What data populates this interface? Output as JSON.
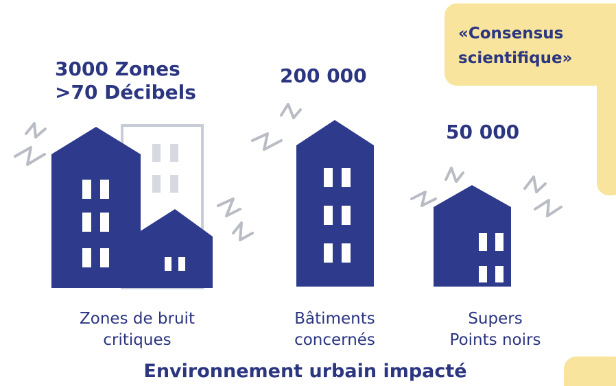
{
  "quote": [
    "«Consensus",
    "scientifique»"
  ],
  "groups": [
    {
      "stat": [
        "3000 Zones",
        ">70 Décibels"
      ],
      "label": [
        "Zones de bruit",
        "critiques"
      ]
    },
    {
      "stat": [
        "200 000"
      ],
      "label": [
        "Bâtiments",
        "concernés"
      ]
    },
    {
      "stat": [
        "50 000"
      ],
      "label": [
        "Supers",
        "Points noirs"
      ]
    }
  ],
  "title": "Environnement urbain impacté"
}
